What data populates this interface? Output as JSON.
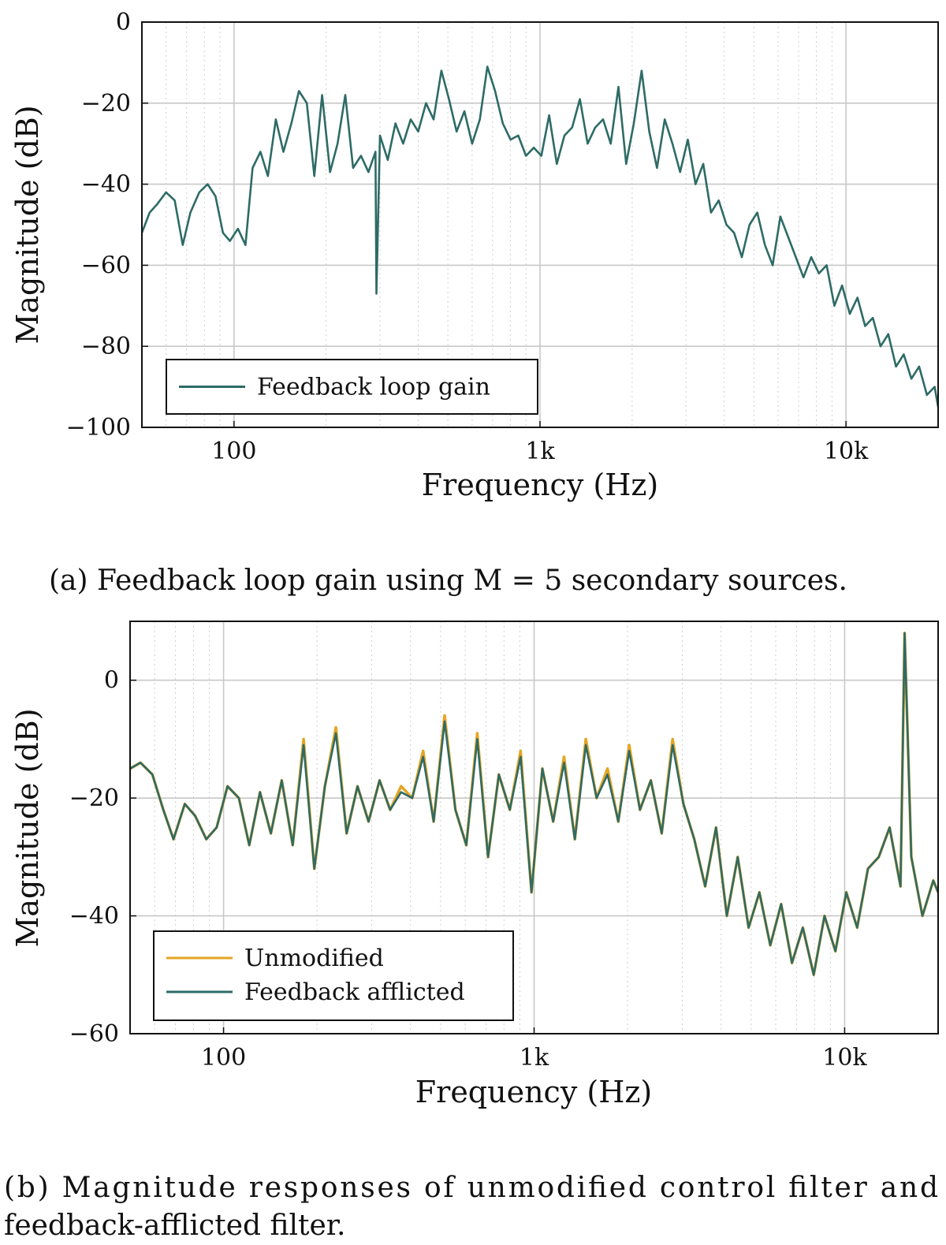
{
  "colors": {
    "feedback": "#2e6b66",
    "unmodified": "#e5a523",
    "grid": "#c8c8c8",
    "text": "#111111"
  },
  "chart_data": [
    {
      "type": "line",
      "caption": "(a) Feedback loop gain using M = 5 secondary sources.",
      "xlabel": "Frequency (Hz)",
      "ylabel": "Magnitude (dB)",
      "xscale": "log",
      "xlim": [
        50,
        20000
      ],
      "ylim": [
        -100,
        0
      ],
      "x_ticks": [
        100,
        1000,
        10000
      ],
      "x_tick_labels": [
        "100",
        "1k",
        "10k"
      ],
      "y_ticks": [
        0,
        -20,
        -40,
        -60,
        -80,
        -100
      ],
      "y_tick_labels": [
        "0",
        "−20",
        "−40",
        "−60",
        "−80",
        "−100"
      ],
      "grid": true,
      "legend_position": "bottom-left",
      "series": [
        {
          "name": "Feedback loop gain",
          "color": "#2e6b66",
          "x": [
            50,
            53,
            56,
            60,
            64,
            68,
            72,
            77,
            82,
            87,
            92,
            97,
            103,
            109,
            115,
            122,
            129,
            137,
            145,
            154,
            163,
            173,
            183,
            194,
            206,
            218,
            231,
            245,
            260,
            275,
            290,
            292,
            300,
            318,
            337,
            357,
            378,
            400,
            424,
            449,
            476,
            504,
            534,
            566,
            600,
            636,
            673,
            713,
            756,
            801,
            849,
            900,
            954,
            1010,
            1071,
            1135,
            1202,
            1274,
            1350,
            1431,
            1516,
            1607,
            1703,
            1804,
            1912,
            2026,
            2148,
            2276,
            2412,
            2556,
            2709,
            2870,
            3042,
            3224,
            3416,
            3620,
            3837,
            4066,
            4309,
            4566,
            4839,
            5128,
            5434,
            5759,
            6103,
            6467,
            6854,
            7263,
            7697,
            8157,
            8644,
            9161,
            9708,
            10290,
            10900,
            11550,
            12240,
            12970,
            13750,
            14570,
            15440,
            16360,
            17340,
            18380,
            19480,
            20000
          ],
          "y": [
            -52,
            -47,
            -45,
            -42,
            -44,
            -55,
            -47,
            -42,
            -40,
            -43,
            -52,
            -54,
            -51,
            -55,
            -36,
            -32,
            -38,
            -24,
            -32,
            -25,
            -17,
            -20,
            -38,
            -18,
            -37,
            -30,
            -18,
            -36,
            -33,
            -37,
            -32,
            -67,
            -28,
            -34,
            -25,
            -30,
            -24,
            -27,
            -20,
            -24,
            -12,
            -19,
            -27,
            -22,
            -30,
            -24,
            -11,
            -17,
            -25,
            -29,
            -28,
            -33,
            -31,
            -33,
            -23,
            -35,
            -28,
            -26,
            -19,
            -30,
            -26,
            -24,
            -30,
            -16,
            -35,
            -25,
            -12,
            -27,
            -36,
            -24,
            -30,
            -37,
            -29,
            -40,
            -35,
            -47,
            -44,
            -50,
            -52,
            -58,
            -50,
            -47,
            -55,
            -60,
            -48,
            -53,
            -58,
            -63,
            -58,
            -62,
            -60,
            -70,
            -65,
            -72,
            -68,
            -75,
            -73,
            -80,
            -77,
            -85,
            -82,
            -88,
            -85,
            -92,
            -90,
            -95
          ]
        }
      ]
    },
    {
      "type": "line",
      "caption": "(b) Magnitude responses of unmodified control filter and feedback-afflicted filter.",
      "xlabel": "Frequency (Hz)",
      "ylabel": "Magnitude (dB)",
      "xscale": "log",
      "xlim": [
        50,
        20000
      ],
      "ylim": [
        -60,
        10
      ],
      "x_ticks": [
        100,
        1000,
        10000
      ],
      "x_tick_labels": [
        "100",
        "1k",
        "10k"
      ],
      "y_ticks": [
        0,
        -20,
        -40,
        -60
      ],
      "y_tick_labels": [
        "0",
        "−20",
        "−40",
        "−60"
      ],
      "grid": true,
      "legend_position": "bottom-left",
      "series": [
        {
          "name": "Unmodified",
          "color": "#e5a523",
          "x": [
            50,
            54,
            59,
            64,
            69,
            75,
            81,
            88,
            95,
            103,
            112,
            121,
            131,
            142,
            154,
            167,
            181,
            196,
            212,
            230,
            249,
            270,
            293,
            318,
            344,
            373,
            405,
            439,
            475,
            515,
            558,
            605,
            656,
            711,
            770,
            835,
            905,
            981,
            1063,
            1152,
            1249,
            1353,
            1467,
            1590,
            1723,
            1867,
            2024,
            2193,
            2377,
            2577,
            2792,
            3026,
            3280,
            3555,
            3853,
            4176,
            4526,
            4905,
            5316,
            5762,
            6245,
            6768,
            7335,
            7950,
            8616,
            9338,
            10120,
            10970,
            11890,
            12880,
            13960,
            15130,
            15600,
            16400,
            17800,
            19300,
            20000
          ],
          "y": [
            -15,
            -14,
            -16,
            -22,
            -27,
            -21,
            -23,
            -27,
            -25,
            -18,
            -20,
            -28,
            -19,
            -26,
            -17,
            -28,
            -10,
            -32,
            -18,
            -8,
            -26,
            -18,
            -24,
            -17,
            -22,
            -18,
            -20,
            -12,
            -24,
            -6,
            -22,
            -28,
            -9,
            -30,
            -16,
            -22,
            -12,
            -36,
            -15,
            -24,
            -13,
            -27,
            -10,
            -20,
            -15,
            -24,
            -11,
            -22,
            -17,
            -26,
            -10,
            -21,
            -27,
            -35,
            -25,
            -40,
            -30,
            -42,
            -36,
            -45,
            -38,
            -48,
            -42,
            -50,
            -40,
            -46,
            -36,
            -42,
            -32,
            -30,
            -25,
            -35,
            8,
            -30,
            -40,
            -34,
            -36
          ]
        },
        {
          "name": "Feedback afflicted",
          "color": "#2e6b66",
          "x": [
            50,
            54,
            59,
            64,
            69,
            75,
            81,
            88,
            95,
            103,
            112,
            121,
            131,
            142,
            154,
            167,
            181,
            196,
            212,
            230,
            249,
            270,
            293,
            318,
            344,
            373,
            405,
            439,
            475,
            515,
            558,
            605,
            656,
            711,
            770,
            835,
            905,
            981,
            1063,
            1152,
            1249,
            1353,
            1467,
            1590,
            1723,
            1867,
            2024,
            2193,
            2377,
            2577,
            2792,
            3026,
            3280,
            3555,
            3853,
            4176,
            4526,
            4905,
            5316,
            5762,
            6245,
            6768,
            7335,
            7950,
            8616,
            9338,
            10120,
            10970,
            11890,
            12880,
            13960,
            15130,
            15600,
            16400,
            17800,
            19300,
            20000
          ],
          "y": [
            -15,
            -14,
            -16,
            -22,
            -27,
            -21,
            -23,
            -27,
            -25,
            -18,
            -20,
            -28,
            -19,
            -26,
            -17,
            -28,
            -11,
            -32,
            -18,
            -9,
            -26,
            -18,
            -24,
            -17,
            -22,
            -19,
            -20,
            -13,
            -24,
            -7,
            -22,
            -28,
            -10,
            -30,
            -16,
            -22,
            -13,
            -36,
            -15,
            -24,
            -14,
            -27,
            -11,
            -20,
            -16,
            -24,
            -12,
            -22,
            -17,
            -26,
            -11,
            -21,
            -27,
            -35,
            -25,
            -40,
            -30,
            -42,
            -36,
            -45,
            -38,
            -48,
            -42,
            -50,
            -40,
            -46,
            -36,
            -42,
            -32,
            -30,
            -25,
            -35,
            8,
            -30,
            -40,
            -34,
            -36
          ]
        }
      ]
    }
  ]
}
